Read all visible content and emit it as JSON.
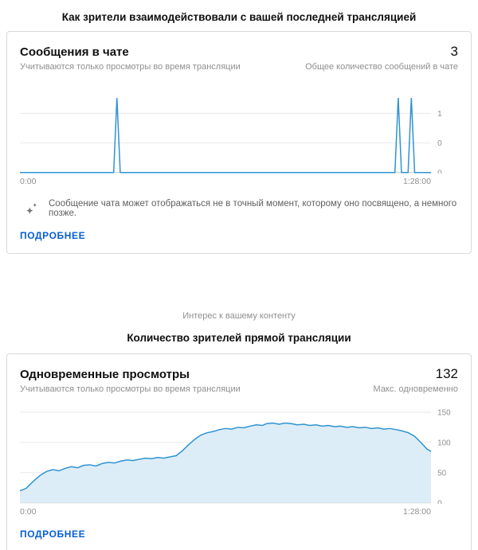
{
  "page": {
    "section1_title": "Как зрители взаимодействовали с вашей последней трансляцией",
    "section2_kicker": "Интерес к вашему контенту",
    "section2_title": "Количество зрителей прямой трансляции"
  },
  "colors": {
    "accent_blue": "#2e93d1",
    "area_fill": "#ddedf7",
    "link_blue": "#065fd4",
    "grid": "#e8e8e8",
    "baseline": "#c9c9c9",
    "axis_text": "#8f8f8f"
  },
  "chat_card": {
    "title": "Сообщения в чате",
    "value": "3",
    "subtitle_left": "Учитываются только просмотры во время трансляции",
    "subtitle_right": "Общее количество сообщений в чате",
    "note": "Сообщение чата может отображаться не в точный момент, которому оно посвящено, а немного позже.",
    "more_label": "ПОДРОБНЕЕ"
  },
  "viewers_card": {
    "title": "Одновременные просмотры",
    "value": "132",
    "subtitle_left": "Учитываются только просмотры во время трансляции",
    "subtitle_right": "Макс. одновременно",
    "more_label": "ПОДРОБНЕЕ"
  },
  "chart_data": [
    {
      "type": "line",
      "title": "Сообщения в чате (общее количество: 3)",
      "xticks": [
        "0:00",
        "1:28:00"
      ],
      "x_range_label": "0:00 – 1:28:00",
      "ymax": 1.5,
      "yticks": [
        {
          "value": 1,
          "label": "1"
        },
        {
          "value": 0.5,
          "label": "0"
        },
        {
          "value": 0,
          "label": "0"
        }
      ],
      "annotation": "3 сообщения: одиночные пики (1 сообщение) примерно на 0:20, 1:21 и 1:24",
      "fill": false,
      "points": [
        [
          0,
          0
        ],
        [
          0.228,
          0
        ],
        [
          0.236,
          1.26
        ],
        [
          0.244,
          0
        ],
        [
          0.912,
          0
        ],
        [
          0.92,
          1.26
        ],
        [
          0.928,
          0
        ],
        [
          0.944,
          0
        ],
        [
          0.952,
          1.26
        ],
        [
          0.96,
          0
        ],
        [
          1,
          0
        ]
      ]
    },
    {
      "type": "area",
      "title": "Одновременные просмотры (макс.: 132)",
      "xticks": [
        "0:00",
        "1:28:00"
      ],
      "x_range_label": "0:00 – 1:28:00",
      "ymax": 160,
      "yticks": [
        {
          "value": 150,
          "label": "150"
        },
        {
          "value": 100,
          "label": "100"
        },
        {
          "value": 50,
          "label": "50"
        },
        {
          "value": 0,
          "label": "0"
        }
      ],
      "annotation": "Рост с ~20 до плато ~125–132 зрителей, максимум 132, спад до ~85 к концу трансляции",
      "fill": true,
      "points": [
        [
          0,
          20
        ],
        [
          0.015,
          24
        ],
        [
          0.03,
          34
        ],
        [
          0.05,
          46
        ],
        [
          0.065,
          52
        ],
        [
          0.08,
          55
        ],
        [
          0.095,
          53
        ],
        [
          0.11,
          57
        ],
        [
          0.125,
          60
        ],
        [
          0.14,
          58
        ],
        [
          0.155,
          62
        ],
        [
          0.17,
          63
        ],
        [
          0.185,
          61
        ],
        [
          0.2,
          65
        ],
        [
          0.215,
          67
        ],
        [
          0.23,
          66
        ],
        [
          0.245,
          69
        ],
        [
          0.26,
          71
        ],
        [
          0.275,
          70
        ],
        [
          0.29,
          72
        ],
        [
          0.305,
          74
        ],
        [
          0.32,
          73
        ],
        [
          0.335,
          75
        ],
        [
          0.35,
          74
        ],
        [
          0.365,
          76
        ],
        [
          0.38,
          78
        ],
        [
          0.395,
          86
        ],
        [
          0.41,
          96
        ],
        [
          0.425,
          105
        ],
        [
          0.44,
          112
        ],
        [
          0.455,
          116
        ],
        [
          0.47,
          118
        ],
        [
          0.485,
          121
        ],
        [
          0.5,
          123
        ],
        [
          0.515,
          122
        ],
        [
          0.53,
          125
        ],
        [
          0.545,
          124
        ],
        [
          0.56,
          127
        ],
        [
          0.575,
          129
        ],
        [
          0.59,
          128
        ],
        [
          0.6,
          131
        ],
        [
          0.615,
          132
        ],
        [
          0.63,
          130
        ],
        [
          0.645,
          132
        ],
        [
          0.66,
          131
        ],
        [
          0.675,
          129
        ],
        [
          0.69,
          130
        ],
        [
          0.705,
          128
        ],
        [
          0.72,
          129
        ],
        [
          0.735,
          127
        ],
        [
          0.75,
          128
        ],
        [
          0.765,
          126
        ],
        [
          0.78,
          127
        ],
        [
          0.795,
          125
        ],
        [
          0.81,
          126
        ],
        [
          0.825,
          124
        ],
        [
          0.84,
          125
        ],
        [
          0.855,
          123
        ],
        [
          0.87,
          124
        ],
        [
          0.885,
          122
        ],
        [
          0.9,
          123
        ],
        [
          0.915,
          121
        ],
        [
          0.93,
          119
        ],
        [
          0.945,
          116
        ],
        [
          0.96,
          110
        ],
        [
          0.975,
          100
        ],
        [
          0.99,
          89
        ],
        [
          1,
          85
        ]
      ]
    }
  ]
}
